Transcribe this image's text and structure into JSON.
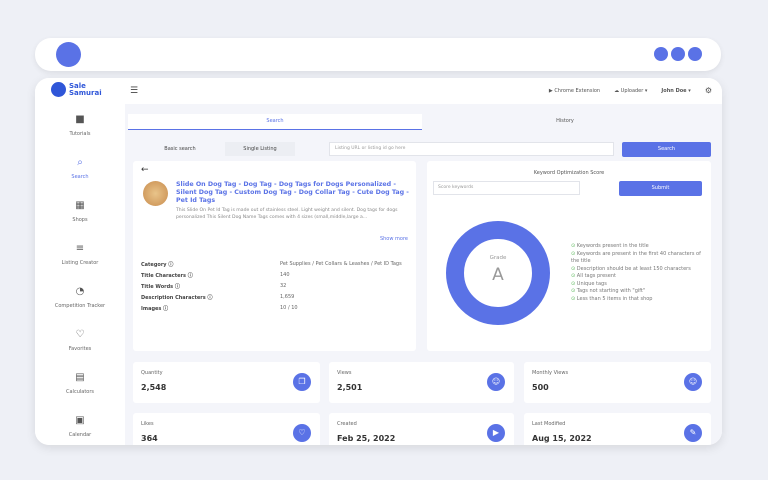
{
  "header": {
    "brand": "Sale Samurai",
    "chrome_extension": "Chrome Extension",
    "uploader": "Uploader",
    "user": "John Doe"
  },
  "sidebar": {
    "items": [
      {
        "label": "Tutorials",
        "icon": "video-icon"
      },
      {
        "label": "Search",
        "icon": "search-icon"
      },
      {
        "label": "Shops",
        "icon": "store-icon"
      },
      {
        "label": "Listing Creator",
        "icon": "list-edit-icon"
      },
      {
        "label": "Competition Tracker",
        "icon": "tracker-icon"
      },
      {
        "label": "Favorites",
        "icon": "heart-icon"
      },
      {
        "label": "Calculators",
        "icon": "calculator-icon"
      },
      {
        "label": "Calendar",
        "icon": "calendar-icon"
      }
    ]
  },
  "tabs": [
    "Search",
    "History"
  ],
  "search_types": [
    "Basic search",
    "Single Listing"
  ],
  "search": {
    "placeholder": "Listing URL or listing id go here",
    "button": "Search"
  },
  "listing": {
    "title": "Slide On Dog Tag - Dog Tag - Dog Tags for Dogs Personalized - Silent Dog Tag - Custom Dog Tag - Dog Collar Tag - Cute Dog Tag - Pet Id Tags",
    "description": "This Slide On Pet Id Tag is made out of stainless steel. Light weight and silent. Dog tags for dogs personalized This Silent Dog Name Tags comes with 4 sizes (small,middle,large a...",
    "show_more": "Show more",
    "attributes": [
      {
        "label": "Category",
        "value": "Pet Supplies / Pet Collars & Leashes / Pet ID Tags"
      },
      {
        "label": "Title Characters",
        "value": "140"
      },
      {
        "label": "Title Words",
        "value": "32"
      },
      {
        "label": "Description Characters",
        "value": "1,659"
      },
      {
        "label": "Images",
        "value": "10 / 10"
      }
    ]
  },
  "keyword": {
    "title": "Keyword Optimization Score",
    "placeholder": "Score keywords",
    "submit": "Submit",
    "grade_label": "Grade",
    "grade": "A",
    "checks": [
      "Keywords present in the title",
      "Keywords are present in the first 40 characters of the title",
      "Description should be at least 150 characters",
      "All tags present",
      "Unique tags",
      "Tags not starting with \"gift\"",
      "Less than 5 items in that shop"
    ]
  },
  "stats": [
    {
      "label": "Quantity",
      "value": "2,548",
      "icon": "copy-icon"
    },
    {
      "label": "Views",
      "value": "2,501",
      "icon": "smile-icon"
    },
    {
      "label": "Monthly Views",
      "value": "500",
      "icon": "smile-icon"
    },
    {
      "label": "Likes",
      "value": "364",
      "icon": "heart-icon"
    },
    {
      "label": "Created",
      "value": "Feb 25, 2022",
      "icon": "play-icon"
    },
    {
      "label": "Last Modified",
      "value": "Aug 15, 2022",
      "icon": "user-edit-icon"
    }
  ],
  "colors": {
    "accent": "#5a72e6",
    "brand": "#2f56d8"
  }
}
